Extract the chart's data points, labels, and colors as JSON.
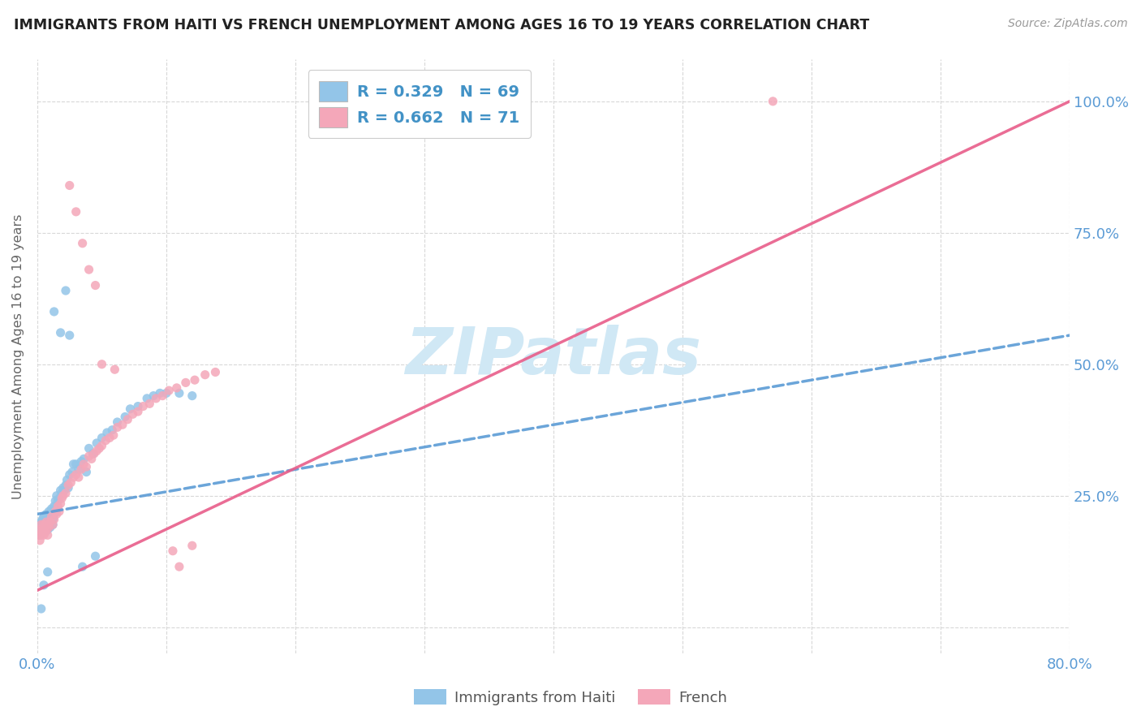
{
  "title": "IMMIGRANTS FROM HAITI VS FRENCH UNEMPLOYMENT AMONG AGES 16 TO 19 YEARS CORRELATION CHART",
  "source": "Source: ZipAtlas.com",
  "ylabel": "Unemployment Among Ages 16 to 19 years",
  "xlim": [
    0.0,
    0.8
  ],
  "ylim": [
    -0.05,
    1.08
  ],
  "blue_color": "#93c5e8",
  "pink_color": "#f4a7b9",
  "blue_line_color": "#5b9bd5",
  "pink_line_color": "#e85d8a",
  "watermark_color": "#d0e8f5",
  "legend_blue_text": "R = 0.329   N = 69",
  "legend_pink_text": "R = 0.662   N = 71",
  "background_color": "#ffffff",
  "grid_color": "#d8d8d8",
  "title_color": "#222222",
  "tick_color": "#5b9bd5",
  "blue_line_x0": 0.0,
  "blue_line_y0": 0.215,
  "blue_line_x1": 0.8,
  "blue_line_y1": 0.555,
  "pink_line_x0": 0.0,
  "pink_line_y0": 0.07,
  "pink_line_x1": 0.8,
  "pink_line_y1": 1.0,
  "blue_scatter_x": [
    0.001,
    0.002,
    0.002,
    0.003,
    0.003,
    0.004,
    0.004,
    0.005,
    0.005,
    0.006,
    0.006,
    0.007,
    0.007,
    0.008,
    0.008,
    0.009,
    0.009,
    0.01,
    0.01,
    0.011,
    0.011,
    0.012,
    0.012,
    0.013,
    0.013,
    0.014,
    0.015,
    0.016,
    0.017,
    0.018,
    0.019,
    0.02,
    0.021,
    0.022,
    0.023,
    0.024,
    0.025,
    0.027,
    0.028,
    0.03,
    0.032,
    0.034,
    0.036,
    0.038,
    0.04,
    0.043,
    0.046,
    0.05,
    0.054,
    0.058,
    0.062,
    0.068,
    0.072,
    0.078,
    0.085,
    0.09,
    0.095,
    0.1,
    0.11,
    0.12,
    0.013,
    0.018,
    0.022,
    0.025,
    0.003,
    0.005,
    0.008,
    0.035,
    0.045
  ],
  "blue_scatter_y": [
    0.185,
    0.195,
    0.175,
    0.2,
    0.18,
    0.19,
    0.205,
    0.195,
    0.21,
    0.185,
    0.2,
    0.195,
    0.215,
    0.205,
    0.185,
    0.2,
    0.22,
    0.21,
    0.19,
    0.215,
    0.225,
    0.205,
    0.195,
    0.23,
    0.215,
    0.24,
    0.25,
    0.24,
    0.245,
    0.26,
    0.255,
    0.265,
    0.26,
    0.27,
    0.28,
    0.265,
    0.29,
    0.295,
    0.31,
    0.31,
    0.3,
    0.315,
    0.32,
    0.295,
    0.34,
    0.33,
    0.35,
    0.36,
    0.37,
    0.375,
    0.39,
    0.4,
    0.415,
    0.42,
    0.435,
    0.44,
    0.445,
    0.445,
    0.445,
    0.44,
    0.6,
    0.56,
    0.64,
    0.555,
    0.035,
    0.08,
    0.105,
    0.115,
    0.135
  ],
  "pink_scatter_x": [
    0.001,
    0.002,
    0.002,
    0.003,
    0.003,
    0.004,
    0.004,
    0.005,
    0.005,
    0.006,
    0.006,
    0.007,
    0.007,
    0.008,
    0.008,
    0.009,
    0.01,
    0.011,
    0.012,
    0.013,
    0.014,
    0.015,
    0.016,
    0.017,
    0.018,
    0.019,
    0.02,
    0.022,
    0.024,
    0.026,
    0.028,
    0.03,
    0.032,
    0.034,
    0.036,
    0.038,
    0.04,
    0.042,
    0.044,
    0.046,
    0.048,
    0.05,
    0.053,
    0.056,
    0.059,
    0.062,
    0.066,
    0.07,
    0.074,
    0.078,
    0.082,
    0.087,
    0.092,
    0.097,
    0.102,
    0.108,
    0.115,
    0.122,
    0.13,
    0.138,
    0.025,
    0.03,
    0.035,
    0.04,
    0.045,
    0.05,
    0.06,
    0.105,
    0.11,
    0.12,
    0.57
  ],
  "pink_scatter_y": [
    0.175,
    0.185,
    0.165,
    0.175,
    0.195,
    0.18,
    0.185,
    0.175,
    0.195,
    0.18,
    0.195,
    0.185,
    0.2,
    0.195,
    0.175,
    0.19,
    0.2,
    0.21,
    0.195,
    0.205,
    0.22,
    0.215,
    0.23,
    0.22,
    0.235,
    0.245,
    0.25,
    0.255,
    0.27,
    0.275,
    0.285,
    0.29,
    0.285,
    0.3,
    0.31,
    0.305,
    0.325,
    0.32,
    0.33,
    0.335,
    0.34,
    0.345,
    0.355,
    0.36,
    0.365,
    0.38,
    0.385,
    0.395,
    0.405,
    0.41,
    0.42,
    0.425,
    0.435,
    0.44,
    0.45,
    0.455,
    0.465,
    0.47,
    0.48,
    0.485,
    0.84,
    0.79,
    0.73,
    0.68,
    0.65,
    0.5,
    0.49,
    0.145,
    0.115,
    0.155,
    1.0
  ]
}
